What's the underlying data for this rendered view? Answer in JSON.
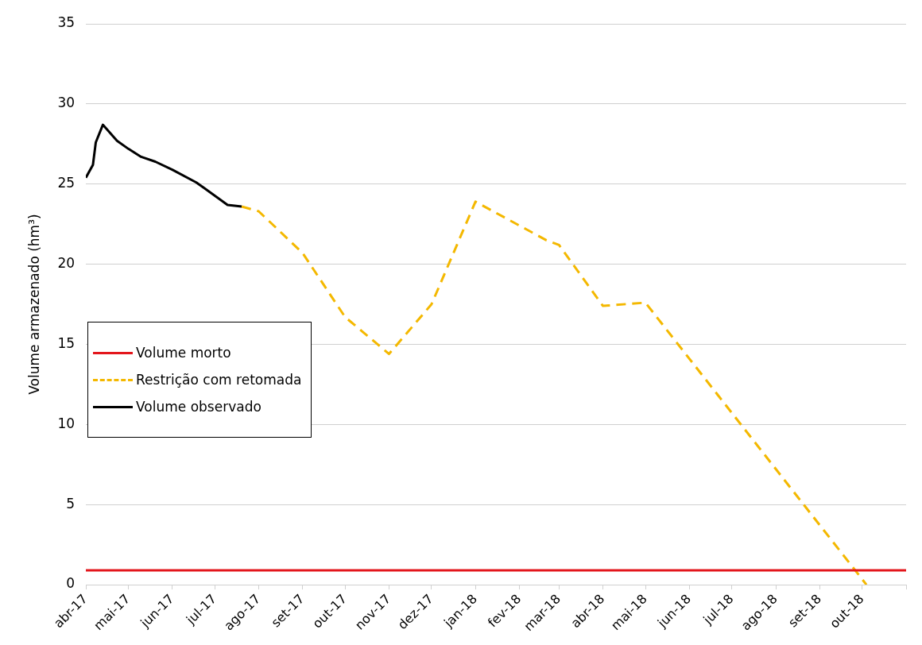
{
  "chart_data": {
    "type": "line",
    "ylabel": "Volume armazenado (hm³)",
    "xlim": [
      "2017-04-01",
      "2018-11-01"
    ],
    "xticks": [
      {
        "value": "2017-04-01",
        "label": "abr-17"
      },
      {
        "value": "2017-05-01",
        "label": "mai-17"
      },
      {
        "value": "2017-06-01",
        "label": "jun-17"
      },
      {
        "value": "2017-07-01",
        "label": "jul-17"
      },
      {
        "value": "2017-08-01",
        "label": "ago-17"
      },
      {
        "value": "2017-09-01",
        "label": "set-17"
      },
      {
        "value": "2017-10-01",
        "label": "out-17"
      },
      {
        "value": "2017-11-01",
        "label": "nov-17"
      },
      {
        "value": "2017-12-01",
        "label": "dez-17"
      },
      {
        "value": "2018-01-01",
        "label": "jan-18"
      },
      {
        "value": "2018-02-01",
        "label": "fev-18"
      },
      {
        "value": "2018-03-01",
        "label": "mar-18"
      },
      {
        "value": "2018-04-01",
        "label": "abr-18"
      },
      {
        "value": "2018-05-01",
        "label": "mai-18"
      },
      {
        "value": "2018-06-01",
        "label": "jun-18"
      },
      {
        "value": "2018-07-01",
        "label": "jul-18"
      },
      {
        "value": "2018-08-01",
        "label": "ago-18"
      },
      {
        "value": "2018-09-01",
        "label": "set-18"
      },
      {
        "value": "2018-10-01",
        "label": "out-18"
      },
      {
        "value": "2018-11-01",
        "label": null
      }
    ],
    "ylim": [
      0,
      35
    ],
    "yticks": [
      0,
      5,
      10,
      15,
      20,
      25,
      30,
      35
    ],
    "grid": "y",
    "legend": "left",
    "marker": "none",
    "series": [
      {
        "name": "Volume morto",
        "color": "#e3161c",
        "line_style": "solid",
        "x": [
          "2017-04-01",
          "2018-11-01"
        ],
        "values": [
          0.9,
          0.9
        ]
      },
      {
        "name": "Restrição com retomada",
        "color": "#f4b800",
        "line_style": "dashed",
        "x": [
          "2017-07-20",
          "2017-08-01",
          "2017-09-01",
          "2017-10-01",
          "2017-11-01",
          "2017-12-01",
          "2018-01-01",
          "2018-02-20",
          "2018-03-01",
          "2018-04-01",
          "2018-05-01",
          "2018-10-04"
        ],
        "values": [
          23.6,
          23.3,
          20.7,
          16.7,
          14.4,
          17.5,
          23.9,
          21.5,
          21.2,
          17.4,
          17.6,
          0
        ]
      },
      {
        "name": "Volume observado",
        "color": "#000000",
        "line_style": "solid",
        "x": [
          "2017-04-01",
          "2017-04-06",
          "2017-04-08",
          "2017-04-13",
          "2017-04-23",
          "2017-05-01",
          "2017-05-10",
          "2017-05-20",
          "2017-06-01",
          "2017-06-18",
          "2017-07-10",
          "2017-07-20"
        ],
        "values": [
          25.4,
          26.2,
          27.6,
          28.7,
          27.7,
          27.2,
          26.7,
          26.4,
          25.9,
          25.1,
          23.7,
          23.6
        ]
      }
    ]
  }
}
